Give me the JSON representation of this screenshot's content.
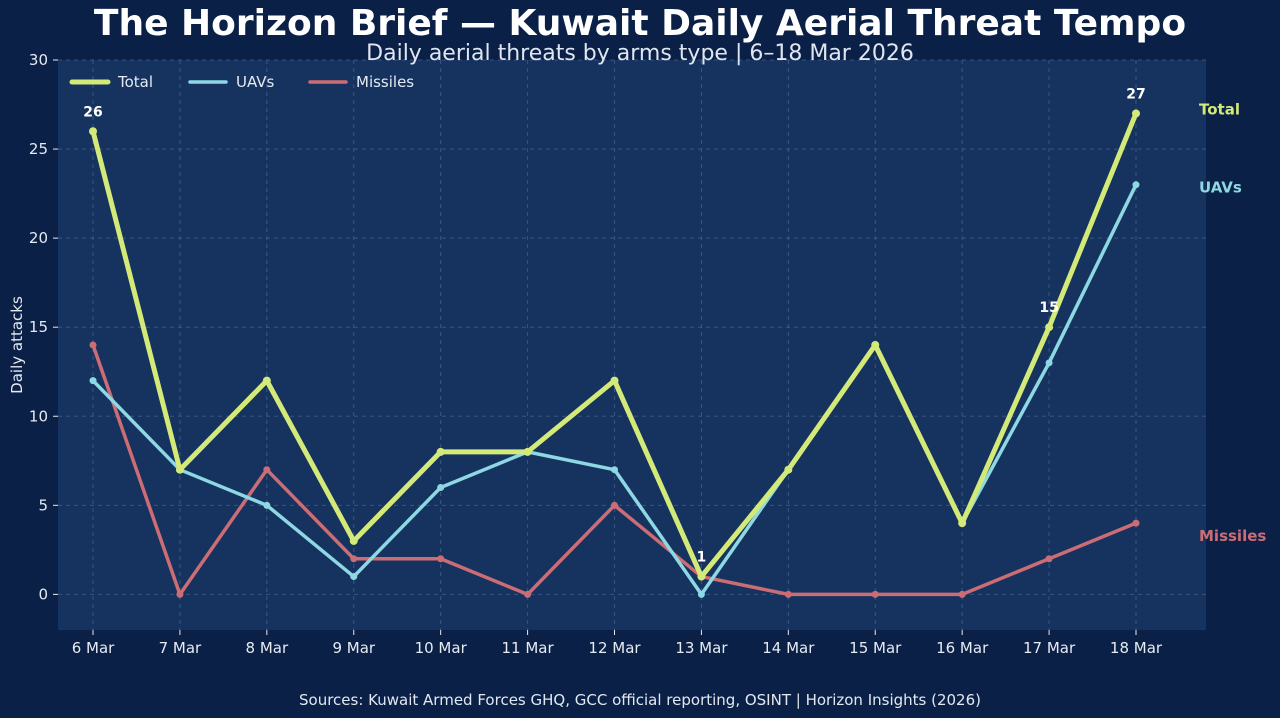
{
  "chart_data": {
    "type": "line",
    "title": "The Horizon Brief — Kuwait Daily Aerial Threat Tempo",
    "subtitle": "Daily aerial threats by arms type | 6–18 Mar 2026",
    "xlabel": "",
    "ylabel": "Daily attacks",
    "categories": [
      "6 Mar",
      "7 Mar",
      "8 Mar",
      "9 Mar",
      "10 Mar",
      "11 Mar",
      "12 Mar",
      "13 Mar",
      "14 Mar",
      "15 Mar",
      "16 Mar",
      "17 Mar",
      "18 Mar"
    ],
    "ylim": [
      -2,
      30
    ],
    "yticks": [
      0,
      5,
      10,
      15,
      20,
      25,
      30
    ],
    "grid": true,
    "legend_position": "top-left",
    "series": [
      {
        "name": "Total",
        "color": "#d4ea78",
        "values": [
          26,
          7,
          12,
          3,
          8,
          8,
          12,
          1,
          7,
          14,
          4,
          15,
          27
        ],
        "end_label": "Total"
      },
      {
        "name": "UAVs",
        "color": "#8ed8e4",
        "values": [
          12,
          7,
          5,
          1,
          6,
          8,
          7,
          0,
          7,
          14,
          4,
          13,
          23
        ],
        "end_label": "UAVs"
      },
      {
        "name": "Missiles",
        "color": "#cc6c74",
        "values": [
          14,
          0,
          7,
          2,
          2,
          0,
          5,
          1,
          0,
          0,
          0,
          2,
          4
        ],
        "end_label": "Missiles"
      }
    ],
    "annotations": [
      {
        "category": "6 Mar",
        "value": 26,
        "text": "26"
      },
      {
        "category": "13 Mar",
        "value": 1,
        "text": "1"
      },
      {
        "category": "17 Mar",
        "value": 15,
        "text": "15"
      },
      {
        "category": "18 Mar",
        "value": 27,
        "text": "27"
      }
    ],
    "colors": {
      "plot_background": "#16335f",
      "page_background": "#0a2047",
      "grid": "#4a6490"
    }
  },
  "footer": {
    "sources": "Sources: Kuwait Armed Forces GHQ, GCC official reporting, OSINT | Horizon Insights (2026)"
  }
}
